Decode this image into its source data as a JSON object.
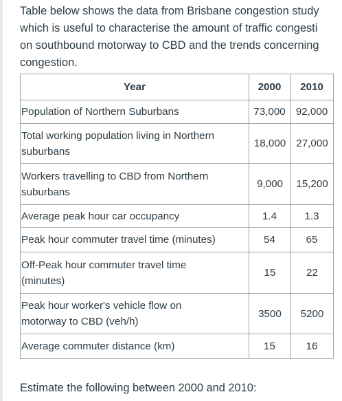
{
  "intro": {
    "line1": "Table below shows the data from Brisbane congestion study",
    "line2": "which is useful to characterise the amount of traffic congesti",
    "line3": "on southbound motorway to CBD and the trends concerning",
    "line4": "congestion."
  },
  "table": {
    "header": {
      "label": "Year",
      "col1": "2000",
      "col2": "2010"
    },
    "rows": [
      {
        "label_line1": "Population of Northern Suburbans",
        "label_line2": "",
        "v2000": "73,000",
        "v2010": "92,000"
      },
      {
        "label_line1": "Total working population living in Northern",
        "label_line2": "suburbans",
        "v2000": "18,000",
        "v2010": "27,000"
      },
      {
        "label_line1": "Workers travelling to CBD from Northern",
        "label_line2": "suburbans",
        "v2000": "9,000",
        "v2010": "15,200"
      },
      {
        "label_line1": "Average peak hour car occupancy",
        "label_line2": "",
        "v2000": "1.4",
        "v2010": "1.3"
      },
      {
        "label_line1": "Peak hour commuter travel time (minutes)",
        "label_line2": "",
        "v2000": "54",
        "v2010": "65"
      },
      {
        "label_line1": "Off-Peak hour commuter travel time",
        "label_line2": "(minutes)",
        "v2000": "15",
        "v2010": "22"
      },
      {
        "label_line1": "Peak hour worker's vehicle flow on",
        "label_line2": "motorway to CBD (veh/h)",
        "v2000": "3500",
        "v2010": "5200"
      },
      {
        "label_line1": "Average commuter distance (km)",
        "label_line2": "",
        "v2000": "15",
        "v2010": "16"
      }
    ]
  },
  "question": "Estimate the following between 2000 and 2010:"
}
